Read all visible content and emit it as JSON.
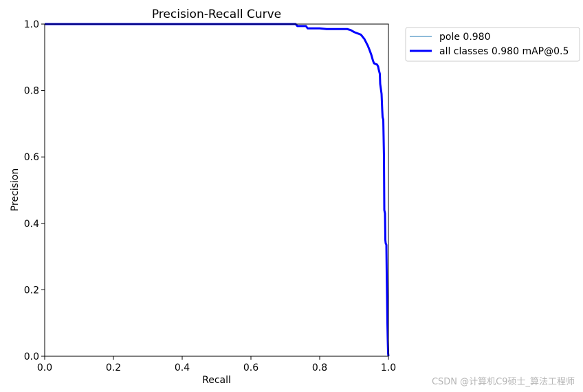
{
  "chart_data": {
    "type": "line",
    "title": "Precision-Recall Curve",
    "xlabel": "Recall",
    "ylabel": "Precision",
    "xlim": [
      0,
      1
    ],
    "ylim": [
      0,
      1
    ],
    "xticks": [
      "0.0",
      "0.2",
      "0.4",
      "0.6",
      "0.8",
      "1.0"
    ],
    "yticks": [
      "0.0",
      "0.2",
      "0.4",
      "0.6",
      "0.8",
      "1.0"
    ],
    "grid": false,
    "legend_position": "outside-top-right",
    "series": [
      {
        "name": "pole 0.980",
        "color": "#1f77b4",
        "style": "thin",
        "x": [
          0.0,
          0.73,
          0.735,
          0.76,
          0.765,
          0.8,
          0.82,
          0.88,
          0.89,
          0.9,
          0.91,
          0.92,
          0.93,
          0.935,
          0.94,
          0.945,
          0.95,
          0.955,
          0.958,
          0.962,
          0.967,
          0.97,
          0.972,
          0.975,
          0.976,
          0.978,
          0.98,
          0.982,
          0.983,
          0.985,
          0.987,
          0.988,
          0.99,
          0.991,
          0.992,
          0.993,
          0.994,
          0.995,
          0.996,
          0.997,
          0.998,
          0.999,
          1.0
        ],
        "y": [
          1.0,
          1.0,
          0.994,
          0.994,
          0.987,
          0.987,
          0.985,
          0.985,
          0.982,
          0.976,
          0.972,
          0.968,
          0.955,
          0.945,
          0.935,
          0.922,
          0.908,
          0.89,
          0.882,
          0.88,
          0.878,
          0.872,
          0.862,
          0.85,
          0.82,
          0.805,
          0.79,
          0.74,
          0.72,
          0.712,
          0.6,
          0.44,
          0.43,
          0.35,
          0.34,
          0.338,
          0.335,
          0.25,
          0.18,
          0.1,
          0.05,
          0.01,
          0.0
        ]
      },
      {
        "name": "all classes 0.980 mAP@0.5",
        "color": "#0000ff",
        "style": "thick",
        "x": [
          0.0,
          0.73,
          0.735,
          0.76,
          0.765,
          0.8,
          0.82,
          0.88,
          0.89,
          0.9,
          0.91,
          0.92,
          0.93,
          0.935,
          0.94,
          0.945,
          0.95,
          0.955,
          0.958,
          0.962,
          0.967,
          0.97,
          0.972,
          0.975,
          0.976,
          0.978,
          0.98,
          0.982,
          0.983,
          0.985,
          0.987,
          0.988,
          0.99,
          0.991,
          0.992,
          0.993,
          0.994,
          0.995,
          0.996,
          0.997,
          0.998,
          0.999,
          1.0
        ],
        "y": [
          1.0,
          1.0,
          0.994,
          0.994,
          0.987,
          0.987,
          0.985,
          0.985,
          0.982,
          0.976,
          0.972,
          0.968,
          0.955,
          0.945,
          0.935,
          0.922,
          0.908,
          0.89,
          0.882,
          0.88,
          0.878,
          0.872,
          0.862,
          0.85,
          0.82,
          0.805,
          0.79,
          0.74,
          0.72,
          0.712,
          0.6,
          0.44,
          0.43,
          0.35,
          0.34,
          0.338,
          0.335,
          0.25,
          0.18,
          0.1,
          0.05,
          0.01,
          0.0
        ]
      }
    ]
  },
  "watermark": "CSDN @计算机C9硕士_算法工程师"
}
